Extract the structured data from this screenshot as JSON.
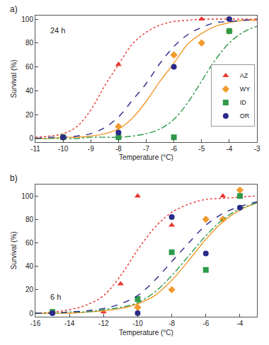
{
  "chart_data": [
    {
      "type": "scatter",
      "title": "a)",
      "subtitle": "24 h",
      "x_label": "Temperature (°C)",
      "y_label": "Survival (%)",
      "x": [
        -10,
        -8,
        -6,
        -5,
        -4
      ],
      "fit_x": [
        -11,
        -10.5,
        -10,
        -9.5,
        -9,
        -8.5,
        -8,
        -7.5,
        -7,
        -6.5,
        -6,
        -5.5,
        -5,
        -4.5,
        -4,
        -3.5,
        -3
      ],
      "series": [
        {
          "name": "AZ",
          "color": "#e8352e",
          "marker": "triangle-up",
          "line_style": "dotted",
          "values": [
            0,
            62,
            null,
            100,
            null
          ],
          "fit": [
            1,
            2,
            4,
            10,
            24,
            44,
            62,
            79,
            89,
            95,
            98,
            99,
            100,
            100,
            100,
            100,
            100
          ]
        },
        {
          "name": "WY",
          "color": "#f29a2e",
          "marker": "diamond",
          "line_style": "solid",
          "values": [
            1,
            10,
            70,
            80,
            90
          ],
          "fit": [
            0,
            0,
            1,
            1,
            2,
            4,
            8,
            17,
            31,
            48,
            63,
            79,
            88,
            94,
            97,
            99,
            99
          ]
        },
        {
          "name": "ID",
          "color": "#2e9a4a",
          "marker": "square",
          "line_style": "dashdot",
          "values": [
            1,
            1,
            1,
            null,
            90
          ],
          "fit": [
            0,
            0,
            0,
            0,
            1,
            1,
            1,
            2,
            4,
            8,
            16,
            30,
            48,
            66,
            80,
            89,
            94
          ]
        },
        {
          "name": "OR",
          "color": "#2a2a8a",
          "marker": "circle",
          "line_style": "dash",
          "values": [
            1,
            5,
            60,
            null,
            100
          ],
          "fit": [
            0,
            1,
            1,
            2,
            4,
            9,
            18,
            32,
            46,
            63,
            77,
            87,
            93,
            97,
            98,
            99,
            100
          ]
        }
      ],
      "xlim": [
        -11,
        -3
      ],
      "xticks": [
        -11,
        -10,
        -9,
        -8,
        -7,
        -6,
        -5,
        -4,
        -3
      ],
      "ylim": [
        -3,
        103
      ],
      "yticks": [
        0,
        20,
        40,
        60,
        80,
        100
      ],
      "grid": false,
      "legend": "lower right"
    },
    {
      "type": "scatter",
      "title": "b)",
      "subtitle": "6 h",
      "x_label": "Temperature (°C)",
      "y_label": "Survival (%)",
      "x": [
        -15,
        -12,
        -11,
        -10,
        -8,
        -6,
        -5,
        -4
      ],
      "fit_x": [
        -16,
        -15,
        -14,
        -13,
        -12,
        -11,
        -10,
        -9,
        -8,
        -7,
        -6,
        -5,
        -4,
        -3
      ],
      "series": [
        {
          "name": "AZ",
          "color": "#e8352e",
          "marker": "triangle-up",
          "line_style": "dotted",
          "values": [
            1,
            1,
            25,
            100,
            75,
            null,
            100,
            null
          ],
          "fit": [
            0,
            1,
            3,
            7,
            15,
            32,
            54,
            73,
            86,
            93,
            97,
            98,
            99,
            100
          ]
        },
        {
          "name": "WY",
          "color": "#f29a2e",
          "marker": "diamond",
          "line_style": "solid",
          "values": [
            1,
            null,
            null,
            5,
            20,
            80,
            80,
            105
          ],
          "fit": [
            0,
            0,
            0,
            1,
            2,
            4,
            8,
            15,
            28,
            45,
            63,
            78,
            88,
            94
          ]
        },
        {
          "name": "ID",
          "color": "#2e9a4a",
          "marker": "square",
          "line_style": "dashdot",
          "values": [
            1,
            null,
            null,
            12,
            52,
            37,
            null,
            100
          ],
          "fit": [
            0,
            0,
            1,
            1,
            3,
            5,
            9,
            18,
            32,
            49,
            66,
            80,
            89,
            94
          ]
        },
        {
          "name": "OR",
          "color": "#2a2a8a",
          "marker": "circle",
          "line_style": "dash",
          "values": [
            0,
            null,
            null,
            0,
            82,
            51,
            null,
            90
          ],
          "fit": [
            0,
            0,
            1,
            2,
            4,
            8,
            15,
            28,
            44,
            60,
            75,
            85,
            91,
            95
          ]
        }
      ],
      "xlim": [
        -16,
        -3
      ],
      "xticks": [
        -16,
        -14,
        -12,
        -10,
        -8,
        -6,
        -4
      ],
      "ylim": [
        -3,
        110
      ],
      "yticks": [
        0,
        20,
        40,
        60,
        80,
        100
      ],
      "grid": false
    }
  ]
}
